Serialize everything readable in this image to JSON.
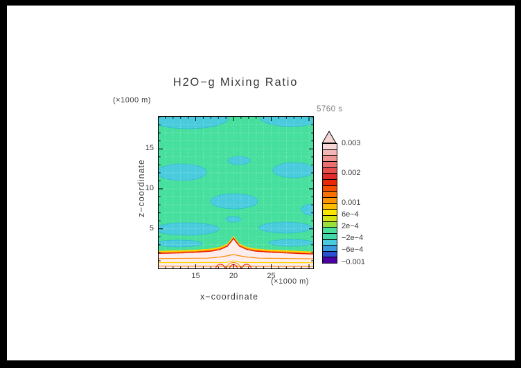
{
  "title": "H2O−g Mixing Ratio",
  "time_label": "5760 s",
  "axes": {
    "y_unit_label": "(×1000 m)",
    "y_axis_label": "z−coordinate",
    "x_unit_label": "(×1000 m)",
    "x_axis_label": "x−coordinate",
    "x_tick_labels": [
      "15",
      "20",
      "25"
    ],
    "y_tick_labels": [
      "5",
      "10",
      "15"
    ]
  },
  "colorbar": {
    "max": 0.003,
    "min": -0.001,
    "labels": [
      {
        "text": "0.003",
        "value": 0.003
      },
      {
        "text": "0.002",
        "value": 0.002
      },
      {
        "text": "0.001",
        "value": 0.001
      },
      {
        "text": "6e−4",
        "value": 0.0006
      },
      {
        "text": "2e−4",
        "value": 0.0002
      },
      {
        "text": "−2e−4",
        "value": -0.0002
      },
      {
        "text": "−6e−4",
        "value": -0.0006
      },
      {
        "text": "−0.001",
        "value": -0.001
      }
    ],
    "colors_top_to_bottom": [
      "#f7d7d7",
      "#f3b5b5",
      "#ef9393",
      "#ea7070",
      "#e64e4e",
      "#e22c2c",
      "#ea2706",
      "#f54e00",
      "#fb7100",
      "#ff9400",
      "#ffbd00",
      "#ffe600",
      "#d6e414",
      "#9be03a",
      "#47e09b",
      "#42d8a8",
      "#48cbdd",
      "#389be0",
      "#2b50d4",
      "#4b00a6"
    ],
    "arrow_color": "#f6d4d4"
  },
  "field_colors": {
    "background_green": "#46df9e",
    "anomaly_cyan": "#49cbdd",
    "cyan_contour": "#2fb9cf",
    "band_pale": "#fcecec",
    "contour_red": "#e81800",
    "contour_orange": "#ff8a00",
    "contour_yellow": "#ffd400"
  },
  "chart_data": {
    "type": "heatmap",
    "title": "H2O−g Mixing Ratio",
    "time": "5760 s",
    "xlabel": "x−coordinate (×1000 m)",
    "ylabel": "z−coordinate (×1000 m)",
    "x_range": [
      10,
      30.5
    ],
    "y_range": [
      0,
      19
    ],
    "x_ticks": [
      15,
      20,
      25
    ],
    "y_ticks": [
      5,
      10,
      15
    ],
    "grid": "dotted, every 1000 m in x and z",
    "legend_position": "right colorbar with top overflow arrow",
    "contour_levels": [
      -0.001,
      -0.0006,
      -0.0002,
      0.0002,
      0.0006,
      0.001,
      0.002,
      0.003
    ],
    "regions": [
      {
        "description": "bulk of domain above z ≈ 2 (×1000 m)",
        "value_range": "−2e−4 to 2e−4",
        "color": "green"
      },
      {
        "description": "horizontal wave-like patches near z ≈ 19, 12.5, 8.5, 5, 3.2 (×1000 m), strongest at left/right flanks and domain top",
        "value_range": "−6e−4 to −2e−4",
        "color": "cyan"
      },
      {
        "description": "shallow surface layer below z ≈ 2 across all x, with plume apex at x ≈ 20 reaching z ≈ 3.8; interior stratified with thin high-value layers and small domes near x ≈ 18.5–21.5",
        "value_range": "0.001 to > 0.003",
        "color": "pale pink core fringed by yellow, orange and red contour lines"
      }
    ]
  }
}
